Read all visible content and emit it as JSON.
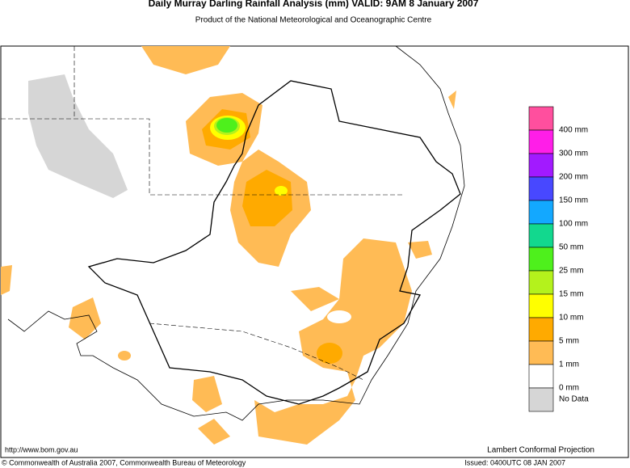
{
  "header": {
    "title": "Daily Murray Darling Rainfall Analysis (mm)  VALID: 9AM  8 January 2007",
    "subtitle": "Product of the National Meteorological and Oceanographic Centre"
  },
  "legend": {
    "items": [
      {
        "label": "400 mm",
        "color": "#ff4f9e"
      },
      {
        "label": "300 mm",
        "color": "#ff1ee8"
      },
      {
        "label": "200 mm",
        "color": "#a21aff"
      },
      {
        "label": "150 mm",
        "color": "#4848ff"
      },
      {
        "label": "100 mm",
        "color": "#13a8ff"
      },
      {
        "label": "50 mm",
        "color": "#12d88e"
      },
      {
        "label": "25 mm",
        "color": "#4ef01c"
      },
      {
        "label": "15 mm",
        "color": "#b4f21c"
      },
      {
        "label": "10 mm",
        "color": "#ffff00"
      },
      {
        "label": "5 mm",
        "color": "#ffaa00"
      },
      {
        "label": "1 mm",
        "color": "#ffbb55"
      },
      {
        "label": "0 mm",
        "color": "#ffffff"
      },
      {
        "label": "No Data",
        "color": "#d6d6d6"
      }
    ]
  },
  "footer": {
    "url": "http://www.bom.gov.au",
    "projection": "Lambert Conformal Projection",
    "copyright": "© Commonwealth of Australia 2007, Commonwealth Bureau of Meteorology",
    "issued": "Issued: 0400UTC 08 JAN 2007"
  }
}
